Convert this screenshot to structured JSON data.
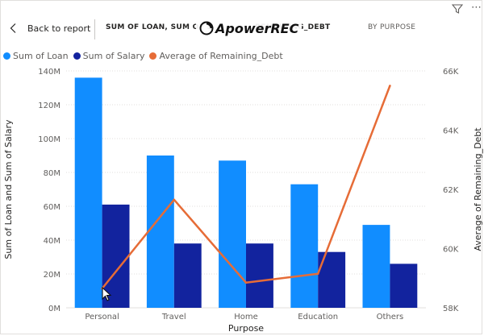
{
  "header": {
    "back_label": "Back to report",
    "title_lead": "SUM OF LOAN, SUM OF S",
    "title_tail": "REMAINING_DEBT",
    "by_label": "BY PURPOSE"
  },
  "watermark": {
    "text": "ApowerREC"
  },
  "colors": {
    "loan": "#118dff",
    "salary": "#12239e",
    "line": "#e66c37",
    "grid": "#e1dfdd"
  },
  "chart_data": {
    "type": "bar",
    "categories": [
      "Personal",
      "Travel",
      "Home",
      "Education",
      "Others"
    ],
    "series": [
      {
        "name": "Sum of Loan",
        "axis": "left",
        "values": [
          136000000,
          90000000,
          87000000,
          73000000,
          49000000
        ]
      },
      {
        "name": "Sum of Salary",
        "axis": "left",
        "values": [
          61000000,
          38000000,
          38000000,
          33000000,
          26000000
        ]
      },
      {
        "name": "Average of Remaining_Debt",
        "axis": "right",
        "type": "line",
        "values": [
          58650,
          61650,
          58850,
          59150,
          65500
        ]
      }
    ],
    "xlabel": "Purpose",
    "ylabel": "Sum of Loan and Sum of Salary",
    "y2label": "Average of Remaining_Debt",
    "ylim": [
      0,
      140000000
    ],
    "y2lim": [
      58000,
      66000
    ],
    "yticks": [
      "0M",
      "20M",
      "40M",
      "60M",
      "80M",
      "100M",
      "120M",
      "140M"
    ],
    "y2ticks": [
      "58K",
      "60K",
      "62K",
      "64K",
      "66K"
    ],
    "legend": "top-left",
    "grid": true
  }
}
